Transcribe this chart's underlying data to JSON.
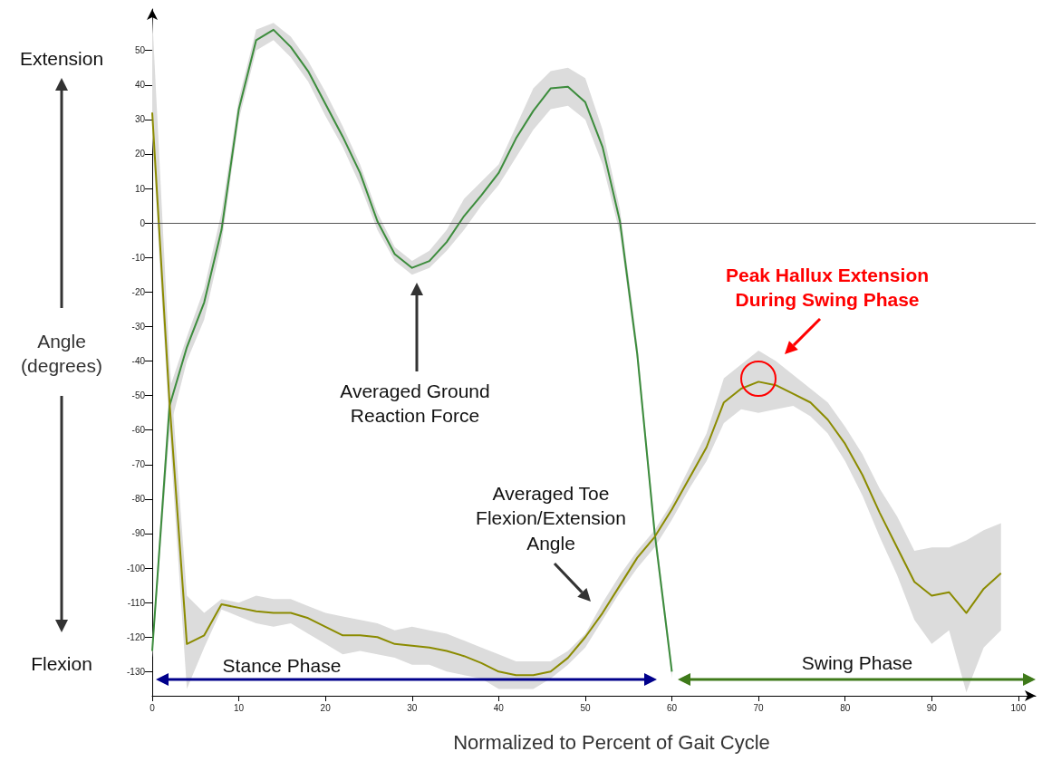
{
  "chart_data": {
    "type": "line",
    "xlabel": "Normalized to Percent of Gait Cycle",
    "ylabel": "Angle\n(degrees)",
    "xlim": [
      0,
      102
    ],
    "xticks": [
      0,
      10,
      20,
      30,
      40,
      50,
      60,
      70,
      80,
      90,
      100
    ],
    "ylim": [
      -137,
      62
    ],
    "yticks": [
      -130,
      -120,
      -110,
      -100,
      -90,
      -80,
      -70,
      -60,
      -50,
      -40,
      -30,
      -20,
      -10,
      0,
      10,
      20,
      30,
      40,
      50
    ],
    "marker": "none",
    "line_style": "solid",
    "series": [
      {
        "color": "#3c8c3c",
        "x": [
          0,
          2,
          4,
          6,
          8,
          10,
          12,
          14,
          16,
          18,
          20,
          22,
          24,
          26,
          28,
          30,
          32,
          34,
          36,
          38,
          40,
          42,
          44,
          46,
          48,
          50,
          52,
          54,
          56,
          58,
          60
        ],
        "values": [
          -124,
          -53,
          -36,
          -23,
          -2,
          33,
          53,
          56,
          51,
          44,
          34.5,
          25,
          14.5,
          0.5,
          -9,
          -13,
          -11,
          -5.5,
          2,
          8,
          14.5,
          24.5,
          32.5,
          39,
          39.5,
          35,
          22,
          0.5,
          -38,
          -89.5,
          -130
        ],
        "lower": [
          -126,
          -60,
          -40,
          -28,
          -6,
          30,
          50,
          53,
          48,
          41,
          31,
          22,
          11,
          -2,
          -11,
          -15,
          -13,
          -8,
          -2,
          5,
          11,
          19,
          27,
          33,
          34,
          30,
          17,
          -3,
          -40,
          -92,
          -132
        ],
        "upper": [
          -122,
          -48,
          -33,
          -19,
          3,
          36,
          56,
          58,
          54,
          47,
          38,
          28,
          17,
          3,
          -7,
          -11,
          -8,
          -2,
          7,
          12,
          17,
          28,
          39,
          44,
          45,
          42,
          27,
          4,
          -35,
          -87,
          -128
        ]
      },
      {
        "color": "#8b8b00",
        "x": [
          0,
          2,
          4,
          6,
          8,
          10,
          12,
          14,
          16,
          18,
          20,
          22,
          24,
          26,
          28,
          30,
          32,
          34,
          36,
          38,
          40,
          42,
          44,
          46,
          48,
          50,
          52,
          54,
          56,
          58,
          60,
          62,
          64,
          66,
          68,
          70,
          72,
          74,
          76,
          78,
          80,
          82,
          84,
          86,
          88,
          90,
          92,
          94,
          96,
          98
        ],
        "values": [
          32,
          -52,
          -122,
          -119.5,
          -110.5,
          -111.5,
          -112.5,
          -113,
          -113,
          -114.5,
          -117,
          -119.5,
          -119.5,
          -120,
          -122,
          -122.5,
          -123,
          -124,
          -125.5,
          -127.5,
          -130,
          -131,
          -131,
          -130,
          -126,
          -120,
          -113,
          -105,
          -97,
          -91,
          -83,
          -74,
          -65,
          -52,
          -48,
          -46,
          -47,
          -49.5,
          -52,
          -57,
          -64,
          -73,
          -84,
          -94,
          -104,
          -108,
          -107,
          -113,
          -106,
          -101.5
        ],
        "lower": [
          25,
          -60,
          -135,
          -123,
          -112,
          -114,
          -116,
          -117,
          -116,
          -119,
          -122,
          -125,
          -124,
          -125,
          -126,
          -128,
          -128,
          -130,
          -131,
          -132,
          -135,
          -135,
          -135,
          -132,
          -128,
          -123,
          -115,
          -107,
          -100,
          -94,
          -86,
          -77,
          -69,
          -58,
          -54,
          -55,
          -54,
          -53,
          -56,
          -61,
          -69,
          -79,
          -91,
          -102,
          -115,
          -122,
          -118,
          -136,
          -123,
          -118
        ],
        "upper": [
          60,
          -40,
          -108,
          -113,
          -109,
          -110,
          -108,
          -109,
          -109,
          -111,
          -113,
          -114,
          -115,
          -116,
          -118,
          -117,
          -118,
          -119,
          -121,
          -123,
          -125,
          -127,
          -127,
          -127,
          -124,
          -119,
          -110,
          -102,
          -95,
          -89,
          -81,
          -71,
          -61,
          -45,
          -41,
          -37,
          -40,
          -44,
          -48,
          -52,
          -59,
          -67,
          -77,
          -85,
          -95,
          -94,
          -94,
          -92,
          -89,
          -87
        ]
      }
    ],
    "ref_lines": [
      {
        "axis": "y",
        "value": 0,
        "color": "#555555"
      }
    ],
    "annotations": [
      "Extension",
      "Flexion",
      "Stance Phase",
      "Swing Phase",
      "Averaged Ground\nReaction Force",
      "Averaged Toe\nFlexion/Extension\nAngle",
      "Peak Hallux Extension\nDuring Swing Phase"
    ]
  }
}
